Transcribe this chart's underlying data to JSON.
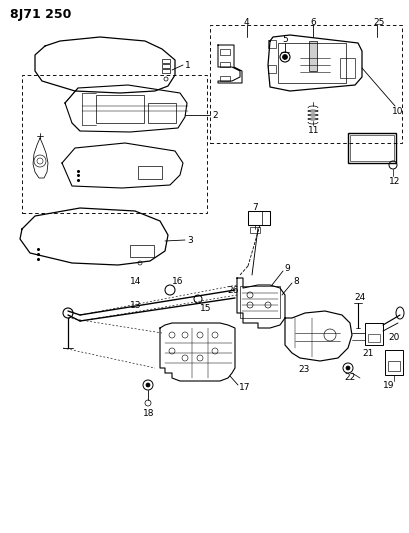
{
  "title": "8J71 250",
  "bg_color": "#ffffff",
  "lc": "#000000",
  "fig_width": 4.1,
  "fig_height": 5.33,
  "dpi": 100
}
